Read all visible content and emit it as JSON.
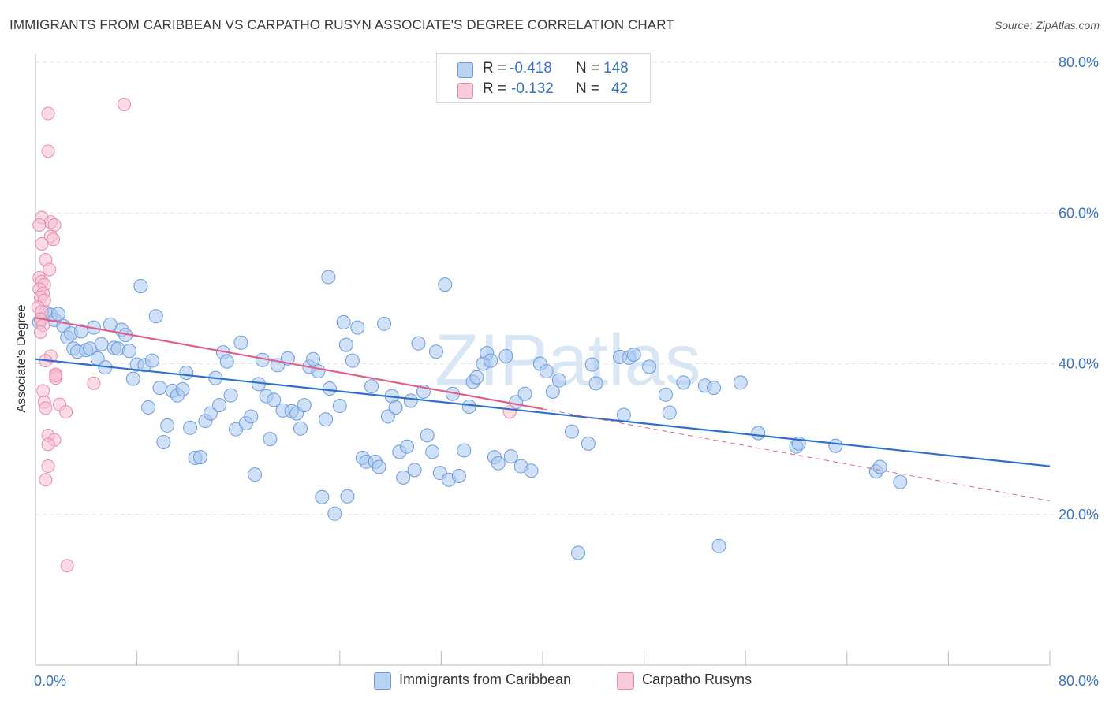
{
  "title": "IMMIGRANTS FROM CARIBBEAN VS CARPATHO RUSYN ASSOCIATE'S DEGREE CORRELATION CHART",
  "source": "Source: ZipAtlas.com",
  "watermark": "ZIPatlas",
  "legend": {
    "rows": [
      {
        "r_label": "R =",
        "r_value": "-0.418",
        "n_label": "N =",
        "n_value": "148"
      },
      {
        "r_label": "R =",
        "r_value": "-0.132",
        "n_label": "N =",
        "n_value": "42"
      }
    ]
  },
  "colors": {
    "blue_fill": "#a9c8f0",
    "blue_stroke": "#6b9be0",
    "blue_line": "#2f6fd0",
    "pink_fill": "#f7bfcf",
    "pink_stroke": "#ea8aa8",
    "pink_line": "#e0608a",
    "axis_text": "#3a74c4",
    "grid": "#e3e3e3"
  },
  "chart_data": {
    "type": "scatter",
    "title": "IMMIGRANTS FROM CARIBBEAN VS CARPATHO RUSYN ASSOCIATE'S DEGREE CORRELATION CHART",
    "xlabel": "",
    "ylabel": "Associate's Degree",
    "xlim": [
      0,
      80
    ],
    "ylim": [
      0,
      80
    ],
    "x_tick_labels": [
      "0.0%",
      "80.0%"
    ],
    "y_tick_labels": [
      "20.0%",
      "40.0%",
      "60.0%",
      "80.0%"
    ],
    "y_ticks": [
      20,
      40,
      60,
      80
    ],
    "grid": true,
    "legend_position": "top-center",
    "series": [
      {
        "name": "Immigrants from Caribbean",
        "color": "#a9c8f0",
        "r": -0.418,
        "n": 148,
        "trend": {
          "x0": 0,
          "y0": 40.6,
          "x1": 80,
          "y1": 26.4
        },
        "points": [
          [
            0.3,
            45.5
          ],
          [
            0.8,
            46.8
          ],
          [
            1.2,
            46.5
          ],
          [
            1.5,
            45.8
          ],
          [
            1.8,
            46.6
          ],
          [
            2.2,
            45.0
          ],
          [
            2.5,
            43.5
          ],
          [
            2.8,
            44.0
          ],
          [
            3.0,
            42.0
          ],
          [
            3.3,
            41.6
          ],
          [
            3.6,
            44.3
          ],
          [
            4.0,
            41.8
          ],
          [
            4.3,
            42.0
          ],
          [
            4.6,
            44.8
          ],
          [
            4.9,
            40.7
          ],
          [
            5.2,
            42.6
          ],
          [
            5.5,
            39.5
          ],
          [
            5.9,
            45.2
          ],
          [
            6.2,
            42.1
          ],
          [
            6.5,
            42.0
          ],
          [
            6.8,
            44.5
          ],
          [
            7.1,
            43.8
          ],
          [
            7.4,
            41.7
          ],
          [
            7.7,
            38.0
          ],
          [
            8.0,
            39.9
          ],
          [
            8.3,
            50.3
          ],
          [
            8.6,
            39.8
          ],
          [
            8.9,
            34.2
          ],
          [
            9.2,
            40.4
          ],
          [
            9.5,
            46.3
          ],
          [
            9.8,
            36.8
          ],
          [
            10.1,
            29.6
          ],
          [
            10.4,
            31.8
          ],
          [
            10.8,
            36.4
          ],
          [
            11.2,
            35.8
          ],
          [
            11.6,
            36.6
          ],
          [
            11.9,
            38.8
          ],
          [
            12.2,
            31.5
          ],
          [
            12.6,
            27.5
          ],
          [
            13.0,
            27.6
          ],
          [
            13.4,
            32.4
          ],
          [
            13.8,
            33.4
          ],
          [
            14.2,
            38.1
          ],
          [
            14.5,
            34.5
          ],
          [
            14.8,
            41.5
          ],
          [
            15.1,
            40.3
          ],
          [
            15.4,
            35.8
          ],
          [
            15.8,
            31.3
          ],
          [
            16.2,
            42.8
          ],
          [
            16.6,
            32.1
          ],
          [
            17.0,
            33.0
          ],
          [
            17.3,
            25.3
          ],
          [
            17.6,
            37.3
          ],
          [
            17.9,
            40.5
          ],
          [
            18.2,
            35.7
          ],
          [
            18.5,
            30.0
          ],
          [
            18.8,
            35.2
          ],
          [
            19.1,
            39.8
          ],
          [
            19.5,
            33.8
          ],
          [
            19.9,
            40.7
          ],
          [
            20.2,
            33.7
          ],
          [
            20.6,
            33.4
          ],
          [
            20.9,
            31.4
          ],
          [
            21.2,
            34.5
          ],
          [
            21.6,
            39.6
          ],
          [
            21.9,
            40.6
          ],
          [
            22.3,
            39.0
          ],
          [
            22.6,
            22.3
          ],
          [
            22.9,
            32.6
          ],
          [
            23.2,
            36.7
          ],
          [
            23.6,
            20.1
          ],
          [
            23.1,
            51.5
          ],
          [
            24.0,
            34.4
          ],
          [
            24.3,
            45.5
          ],
          [
            24.6,
            22.4
          ],
          [
            24.5,
            42.5
          ],
          [
            25.0,
            40.4
          ],
          [
            25.4,
            44.8
          ],
          [
            25.8,
            27.5
          ],
          [
            26.1,
            27.0
          ],
          [
            26.5,
            37.0
          ],
          [
            26.8,
            27.0
          ],
          [
            27.1,
            26.3
          ],
          [
            27.5,
            45.3
          ],
          [
            27.8,
            33.0
          ],
          [
            28.1,
            35.7
          ],
          [
            28.4,
            34.2
          ],
          [
            28.7,
            28.3
          ],
          [
            29.0,
            24.9
          ],
          [
            29.3,
            29.0
          ],
          [
            29.6,
            35.1
          ],
          [
            29.9,
            25.9
          ],
          [
            30.2,
            42.7
          ],
          [
            30.6,
            36.3
          ],
          [
            30.9,
            30.5
          ],
          [
            31.3,
            28.3
          ],
          [
            31.6,
            41.6
          ],
          [
            31.9,
            25.5
          ],
          [
            32.3,
            50.5
          ],
          [
            32.6,
            24.6
          ],
          [
            32.9,
            36.0
          ],
          [
            33.4,
            25.1
          ],
          [
            33.8,
            28.5
          ],
          [
            34.2,
            34.3
          ],
          [
            34.5,
            37.6
          ],
          [
            34.8,
            38.2
          ],
          [
            35.3,
            40.0
          ],
          [
            35.6,
            41.4
          ],
          [
            35.9,
            40.4
          ],
          [
            36.2,
            27.6
          ],
          [
            36.5,
            26.8
          ],
          [
            37.1,
            41.0
          ],
          [
            37.5,
            27.7
          ],
          [
            37.9,
            34.9
          ],
          [
            38.3,
            26.4
          ],
          [
            38.6,
            36.0
          ],
          [
            39.1,
            25.8
          ],
          [
            39.8,
            40.0
          ],
          [
            40.3,
            39.0
          ],
          [
            40.8,
            36.3
          ],
          [
            41.3,
            37.8
          ],
          [
            42.3,
            31.0
          ],
          [
            42.8,
            14.9
          ],
          [
            43.6,
            29.4
          ],
          [
            43.9,
            39.9
          ],
          [
            44.2,
            37.4
          ],
          [
            46.1,
            40.9
          ],
          [
            46.4,
            33.2
          ],
          [
            46.8,
            40.8
          ],
          [
            47.2,
            41.2
          ],
          [
            48.4,
            39.6
          ],
          [
            49.7,
            35.9
          ],
          [
            50.0,
            33.5
          ],
          [
            51.1,
            37.5
          ],
          [
            52.8,
            37.1
          ],
          [
            53.5,
            36.8
          ],
          [
            53.9,
            15.8
          ],
          [
            55.6,
            37.5
          ],
          [
            57.0,
            30.8
          ],
          [
            60.0,
            29.0
          ],
          [
            60.2,
            29.4
          ],
          [
            63.1,
            29.1
          ],
          [
            66.3,
            25.7
          ],
          [
            66.6,
            26.3
          ],
          [
            68.2,
            24.3
          ]
        ]
      },
      {
        "name": "Carpatho Rusyns",
        "color": "#f7bfcf",
        "r": -0.132,
        "n": 42,
        "trend": {
          "x0": 0,
          "y0": 46.1,
          "x1": 40,
          "y1": 34.0
        },
        "trend_dashed": {
          "x0": 40,
          "y0": 34.0,
          "x1": 80,
          "y1": 21.8
        },
        "points": [
          [
            1.0,
            73.2
          ],
          [
            1.0,
            68.2
          ],
          [
            7.0,
            74.4
          ],
          [
            0.5,
            59.4
          ],
          [
            1.2,
            58.8
          ],
          [
            1.5,
            58.4
          ],
          [
            0.3,
            58.4
          ],
          [
            1.2,
            56.9
          ],
          [
            1.4,
            56.5
          ],
          [
            0.5,
            55.9
          ],
          [
            0.8,
            53.8
          ],
          [
            1.1,
            52.5
          ],
          [
            0.3,
            51.4
          ],
          [
            0.5,
            50.9
          ],
          [
            0.7,
            50.5
          ],
          [
            0.3,
            49.9
          ],
          [
            0.6,
            49.3
          ],
          [
            0.4,
            48.8
          ],
          [
            0.7,
            48.4
          ],
          [
            0.2,
            47.5
          ],
          [
            0.5,
            46.9
          ],
          [
            0.4,
            45.9
          ],
          [
            0.6,
            45.1
          ],
          [
            0.4,
            44.2
          ],
          [
            1.2,
            41.0
          ],
          [
            0.8,
            40.4
          ],
          [
            1.6,
            38.6
          ],
          [
            1.6,
            38.1
          ],
          [
            4.6,
            37.4
          ],
          [
            0.6,
            36.4
          ],
          [
            0.7,
            34.9
          ],
          [
            1.9,
            34.6
          ],
          [
            0.8,
            34.1
          ],
          [
            2.4,
            33.6
          ],
          [
            1.0,
            30.5
          ],
          [
            1.5,
            29.9
          ],
          [
            1.0,
            29.3
          ],
          [
            1.0,
            26.4
          ],
          [
            0.8,
            24.6
          ],
          [
            2.5,
            13.2
          ],
          [
            1.6,
            38.4
          ],
          [
            37.4,
            33.6
          ]
        ]
      }
    ]
  }
}
